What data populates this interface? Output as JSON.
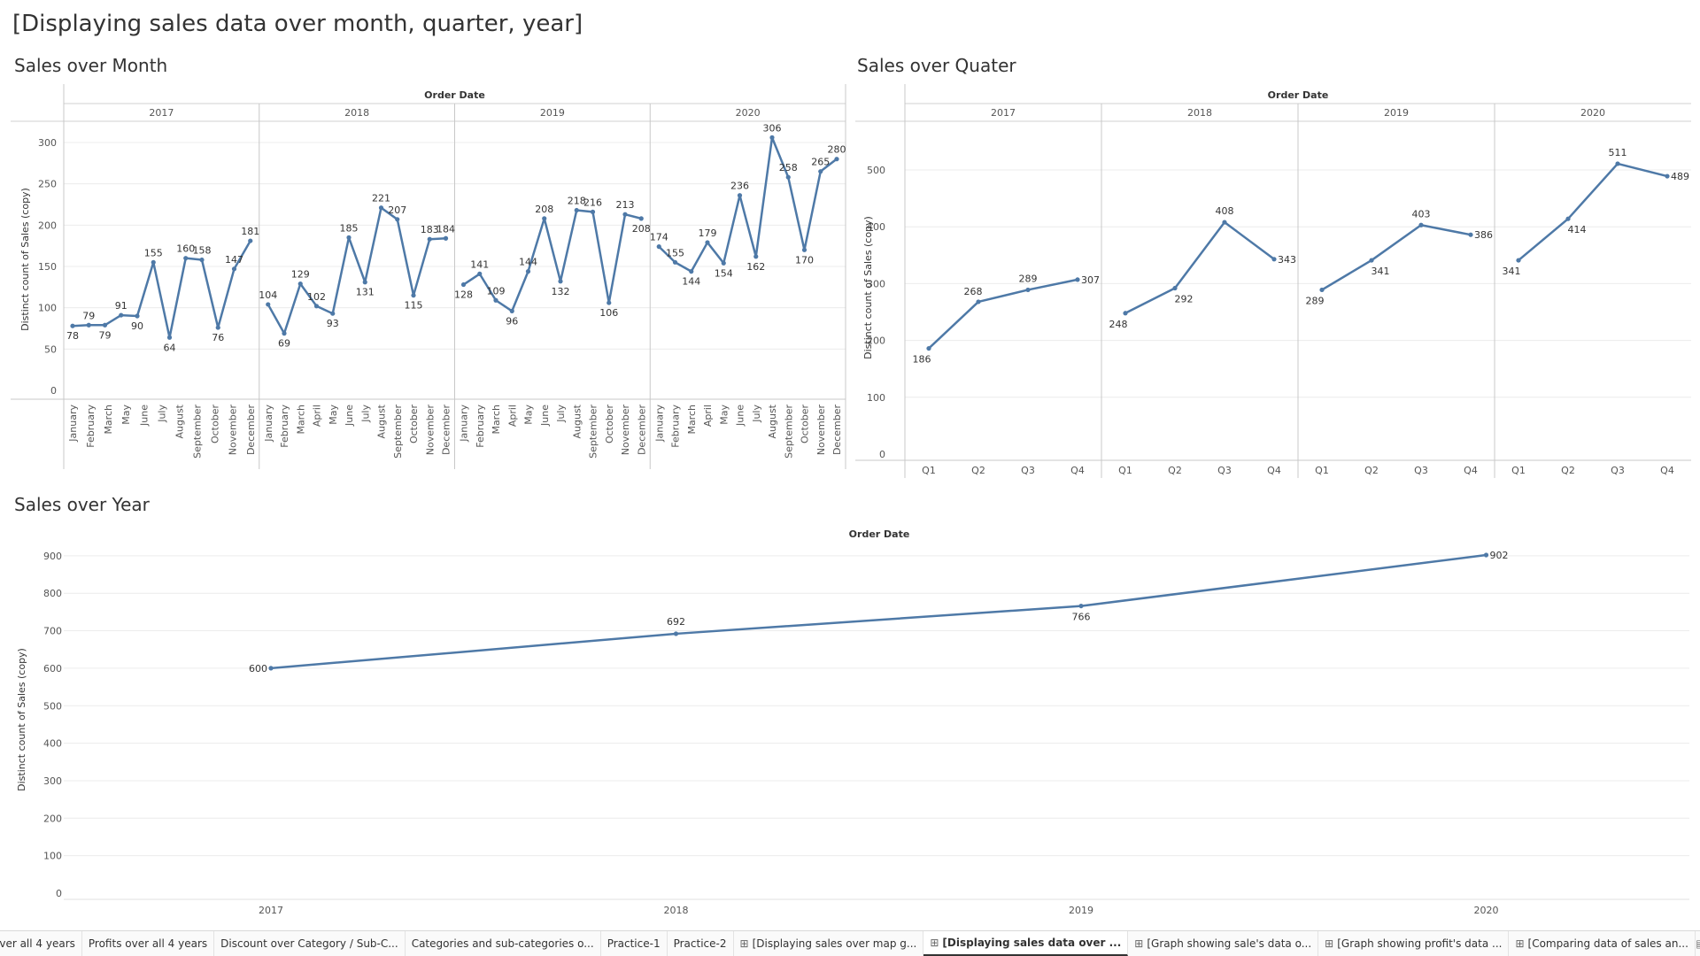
{
  "dashboard": {
    "title": "[Displaying sales data over month, quarter, year]"
  },
  "charts": {
    "month": {
      "title": "Sales over Month"
    },
    "quarter": {
      "title": "Sales over Quater"
    },
    "year": {
      "title": "Sales over Year"
    }
  },
  "chart_data": [
    {
      "type": "line",
      "title": "Sales over Month",
      "header": "Order Date",
      "ylabel": "Distinct count of Sales (copy)",
      "ylim": [
        0,
        325
      ],
      "yticks": [
        0,
        50,
        100,
        150,
        200,
        250,
        300
      ],
      "years": [
        "2017",
        "2018",
        "2019",
        "2020"
      ],
      "categories": [
        "January",
        "February",
        "March",
        "April",
        "May",
        "June",
        "July",
        "August",
        "September",
        "October",
        "November",
        "December"
      ],
      "category_labels_2017": [
        "January",
        "February",
        "March",
        "May",
        "June",
        "July",
        "August",
        "September",
        "October",
        "November",
        "December"
      ],
      "values": [
        [
          78,
          79,
          79,
          91,
          90,
          155,
          64,
          160,
          158,
          76,
          147,
          181
        ],
        [
          104,
          69,
          129,
          102,
          93,
          185,
          131,
          221,
          207,
          115,
          183,
          184
        ],
        [
          128,
          141,
          109,
          96,
          144,
          208,
          132,
          218,
          216,
          106,
          213,
          208
        ],
        [
          174,
          155,
          144,
          179,
          154,
          236,
          162,
          306,
          258,
          170,
          265,
          280
        ]
      ],
      "grid": true,
      "color": "#4e79a7"
    },
    {
      "type": "line",
      "title": "Sales over Quater",
      "header": "Order Date",
      "ylabel": "Distinct count of Sales (copy)",
      "ylim": [
        0,
        540
      ],
      "yticks": [
        0,
        100,
        200,
        300,
        400,
        500
      ],
      "years": [
        "2017",
        "2018",
        "2019",
        "2020"
      ],
      "categories": [
        "Q1",
        "Q2",
        "Q3",
        "Q4"
      ],
      "values": [
        [
          186,
          268,
          289,
          307
        ],
        [
          248,
          292,
          408,
          343
        ],
        [
          289,
          341,
          403,
          386
        ],
        [
          341,
          414,
          511,
          489
        ]
      ],
      "grid": true,
      "color": "#4e79a7"
    },
    {
      "type": "line",
      "title": "Sales over Year",
      "header": "Order Date",
      "ylabel": "Distinct count of Sales (copy)",
      "ylim": [
        0,
        950
      ],
      "yticks": [
        0,
        100,
        200,
        300,
        400,
        500,
        600,
        700,
        800,
        900
      ],
      "categories": [
        "2017",
        "2018",
        "2019",
        "2020"
      ],
      "values": [
        600,
        692,
        766,
        902
      ],
      "grid": true,
      "color": "#4e79a7"
    }
  ],
  "tabs": [
    {
      "label": "over all 4 years",
      "icon": "",
      "active": false
    },
    {
      "label": "Profits over all 4 years",
      "icon": "",
      "active": false
    },
    {
      "label": "Discount over Category / Sub-C...",
      "icon": "",
      "active": false
    },
    {
      "label": "Categories and sub-categories o...",
      "icon": "",
      "active": false
    },
    {
      "label": "Practice-1",
      "icon": "",
      "active": false
    },
    {
      "label": "Practice-2",
      "icon": "",
      "active": false
    },
    {
      "label": "[Displaying sales over map g...",
      "icon": "dashboard-icon",
      "active": false
    },
    {
      "label": "[Displaying sales data over ...",
      "icon": "dashboard-icon",
      "active": true
    },
    {
      "label": "[Graph showing sale's data o...",
      "icon": "dashboard-icon",
      "active": false
    },
    {
      "label": "[Graph showing profit's data ...",
      "icon": "dashboard-icon",
      "active": false
    },
    {
      "label": "[Comparing data of sales an...",
      "icon": "dashboard-icon",
      "active": false
    }
  ],
  "nav": {
    "icons": [
      "filmstrip-icon",
      "tab-view-icon",
      "prev-arrow-icon",
      "next-arrow-icon",
      "fullscreen-icon",
      "present-icon"
    ]
  }
}
